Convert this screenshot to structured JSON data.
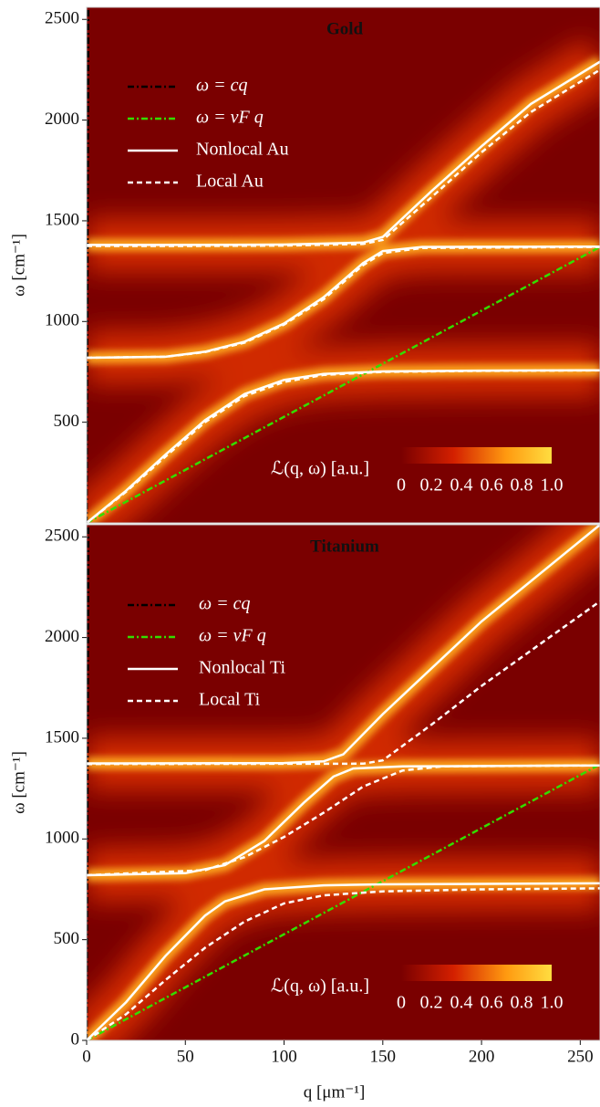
{
  "chart_data": [
    {
      "type": "line",
      "title": "Gold",
      "background": "#7a0000",
      "xlim": [
        0,
        260
      ],
      "ylim": [
        0,
        2560
      ],
      "yticks": [
        500,
        1000,
        1500,
        2000,
        2500
      ],
      "ylabel": "ω [cm⁻¹]",
      "colorbar": {
        "label": "ℒ(q, ω) [a.u.]",
        "ticks": [
          0,
          0.2,
          0.4,
          0.6,
          0.8,
          {
            "value": 1,
            "label": "1.0"
          }
        ]
      },
      "series": [
        {
          "name": "ω = cq",
          "color": "#000000",
          "dash": "dashdot",
          "x": [
            0,
            0.85
          ],
          "values": [
            0,
            2560
          ]
        },
        {
          "name": "ω = vF q",
          "color": "#33dd00",
          "dash": "dashdot",
          "x": [
            0,
            260
          ],
          "values": [
            0,
            1370
          ]
        },
        {
          "name": "Nonlocal Au",
          "color": "#ffffff",
          "dash": "solid",
          "glow": true,
          "x": [
            0,
            50,
            100,
            140,
            150,
            175,
            200,
            225,
            260,
            null,
            0,
            40,
            60,
            80,
            100,
            120,
            140,
            150,
            170,
            260,
            null,
            0,
            20,
            40,
            60,
            80,
            100,
            120,
            150,
            200,
            260
          ],
          "values": [
            1380,
            1380,
            1382,
            1392,
            1420,
            1650,
            1870,
            2080,
            2290,
            null,
            820,
            825,
            850,
            900,
            990,
            1120,
            1290,
            1350,
            1370,
            1372,
            null,
            0,
            160,
            340,
            510,
            640,
            710,
            740,
            752,
            756,
            758
          ]
        },
        {
          "name": "Local Au",
          "color": "#ffffff",
          "dash": "dash",
          "x": [
            0,
            50,
            100,
            140,
            150,
            175,
            200,
            225,
            260,
            null,
            0,
            40,
            60,
            80,
            100,
            120,
            140,
            150,
            170,
            260,
            null,
            0,
            20,
            40,
            60,
            80,
            100,
            120,
            150,
            200,
            260
          ],
          "values": [
            1375,
            1375,
            1377,
            1385,
            1405,
            1620,
            1840,
            2040,
            2250,
            null,
            820,
            825,
            848,
            895,
            985,
            1110,
            1280,
            1340,
            1365,
            1370,
            null,
            0,
            155,
            330,
            500,
            630,
            700,
            735,
            750,
            755,
            757
          ]
        }
      ]
    },
    {
      "type": "line",
      "title": "Titanium",
      "background": "#7a0000",
      "xlim": [
        0,
        260
      ],
      "ylim": [
        0,
        2560
      ],
      "xticks": [
        0,
        50,
        100,
        150,
        200,
        250
      ],
      "yticks": [
        0,
        500,
        1000,
        1500,
        2000,
        2500
      ],
      "xlabel": "q [μm⁻¹]",
      "ylabel": "ω [cm⁻¹]",
      "colorbar": {
        "label": "ℒ(q, ω) [a.u.]",
        "ticks": [
          0,
          0.2,
          0.4,
          0.6,
          0.8,
          {
            "value": 1,
            "label": "1.0"
          }
        ]
      },
      "series": [
        {
          "name": "ω = cq",
          "color": "#000000",
          "dash": "dashdot",
          "x": [
            0,
            0.85
          ],
          "values": [
            0,
            2560
          ]
        },
        {
          "name": "ω = vF q",
          "color": "#33dd00",
          "dash": "dashdot",
          "x": [
            0,
            260
          ],
          "values": [
            0,
            1370
          ]
        },
        {
          "name": "Nonlocal Ti",
          "color": "#ffffff",
          "dash": "solid",
          "glow": true,
          "x": [
            0,
            100,
            120,
            130,
            150,
            200,
            260,
            null,
            0,
            50,
            70,
            90,
            110,
            125,
            135,
            160,
            260,
            null,
            0,
            20,
            40,
            60,
            70,
            90,
            120,
            150,
            260
          ],
          "values": [
            1375,
            1377,
            1385,
            1420,
            1620,
            2080,
            2560,
            null,
            820,
            830,
            870,
            990,
            1180,
            1310,
            1350,
            1360,
            1365,
            null,
            0,
            190,
            420,
            620,
            690,
            750,
            770,
            775,
            780
          ]
        },
        {
          "name": "Local Ti",
          "color": "#ffffff",
          "dash": "dash",
          "x": [
            0,
            140,
            150,
            175,
            200,
            230,
            260,
            null,
            0,
            60,
            80,
            100,
            120,
            140,
            160,
            180,
            260,
            null,
            0,
            20,
            40,
            60,
            80,
            100,
            120,
            150,
            200,
            260
          ],
          "values": [
            1372,
            1374,
            1390,
            1570,
            1760,
            1970,
            2180,
            null,
            820,
            845,
            910,
            1010,
            1130,
            1260,
            1340,
            1360,
            1365,
            null,
            0,
            130,
            300,
            460,
            590,
            680,
            720,
            740,
            750,
            755
          ]
        }
      ]
    }
  ]
}
